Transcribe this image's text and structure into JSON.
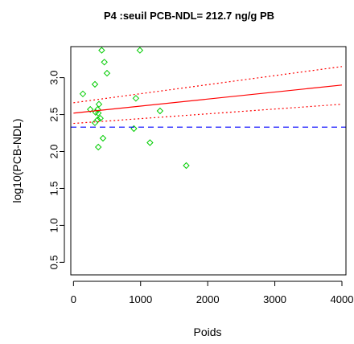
{
  "chart_data": {
    "type": "scatter",
    "title": "P4 :seuil PCB-NDL= 212.7 ng/g PB",
    "xlabel": "Poids",
    "ylabel": "log10(PCB-NDL)",
    "xlim": [
      -40,
      4060
    ],
    "ylim": [
      0.33,
      3.42
    ],
    "x_ticks": [
      0,
      1000,
      2000,
      3000,
      4000
    ],
    "y_ticks": [
      0.5,
      1.0,
      1.5,
      2.0,
      2.5,
      3.0
    ],
    "x_tick_labels": [
      "0",
      "1000",
      "2000",
      "3000",
      "4000"
    ],
    "y_tick_labels": [
      "0.5",
      "1.0",
      "1.5",
      "2.0",
      "2.5",
      "3.0"
    ],
    "grid": false,
    "legend": "none",
    "series": [
      {
        "kind": "points",
        "marker": "diamond",
        "color": "#00cc00",
        "x": [
          420,
          460,
          990,
          500,
          140,
          320,
          930,
          250,
          380,
          360,
          1290,
          330,
          370,
          400,
          360,
          320,
          900,
          440,
          1140,
          370,
          1680
        ],
        "y": [
          3.37,
          3.21,
          3.37,
          3.06,
          2.78,
          2.91,
          2.72,
          2.57,
          2.64,
          2.57,
          2.55,
          2.53,
          2.52,
          2.45,
          2.43,
          2.39,
          2.31,
          2.18,
          2.12,
          2.06,
          1.81
        ]
      },
      {
        "kind": "regression-line",
        "color": "#ff0000",
        "style": "solid",
        "x": [
          0,
          4000
        ],
        "y": [
          2.52,
          2.9
        ]
      },
      {
        "kind": "confidence-upper",
        "color": "#ff0000",
        "style": "dotted",
        "x": [
          0,
          4000
        ],
        "y": [
          2.66,
          3.15
        ]
      },
      {
        "kind": "confidence-lower",
        "color": "#ff0000",
        "style": "dotted",
        "x": [
          0,
          4000
        ],
        "y": [
          2.38,
          2.64
        ]
      },
      {
        "kind": "threshold-line",
        "color": "#0000ff",
        "style": "dashed",
        "y": 2.33
      }
    ]
  }
}
